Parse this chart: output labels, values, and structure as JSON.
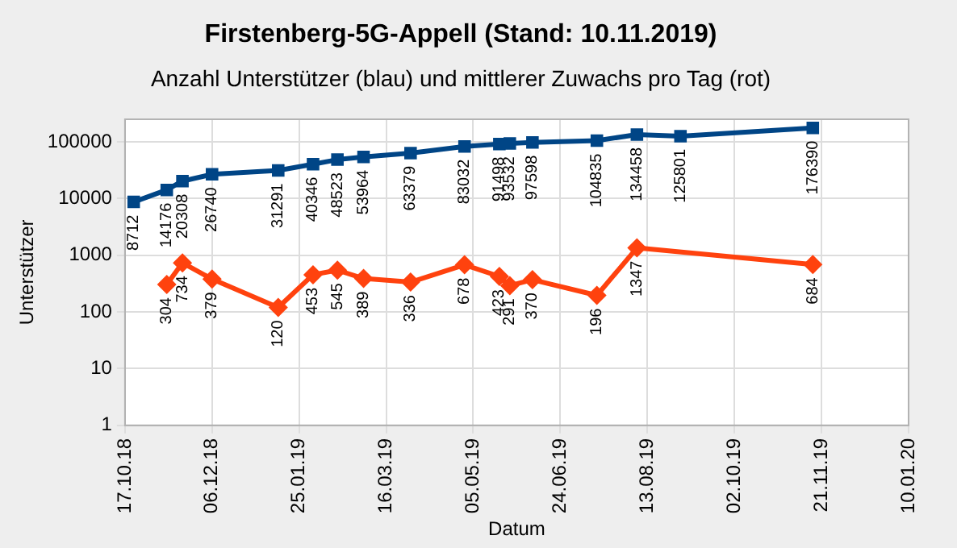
{
  "chart_data": {
    "type": "line",
    "title": "Firstenberg-5G-Appell (Stand: 10.11.2019)",
    "subtitle": "Anzahl Unterstützer (blau) und mittlerer Zuwachs pro Tag (rot)",
    "xlabel": "Datum",
    "ylabel": "Unterstützer",
    "log": "y",
    "grid": true,
    "legend": false,
    "data_labels": true,
    "line_style": "solid",
    "xlim": [
      "2018-10-17",
      "2020-01-10"
    ],
    "xticks": [
      {
        "value": "2018-10-17",
        "label": "17.10.18"
      },
      {
        "value": "2018-12-06",
        "label": "06.12.18"
      },
      {
        "value": "2019-01-25",
        "label": "25.01.19"
      },
      {
        "value": "2019-03-16",
        "label": "16.03.19"
      },
      {
        "value": "2019-05-05",
        "label": "05.05.19"
      },
      {
        "value": "2019-06-24",
        "label": "24.06.19"
      },
      {
        "value": "2019-08-13",
        "label": "13.08.19"
      },
      {
        "value": "2019-10-02",
        "label": "02.10.19"
      },
      {
        "value": "2019-11-21",
        "label": "21.11.19"
      },
      {
        "value": "2020-01-10",
        "label": "10.01.20"
      }
    ],
    "ylim": [
      1,
      250000
    ],
    "yticks": [
      1,
      10,
      100,
      1000,
      10000,
      100000
    ],
    "series": [
      {
        "color": "#004586",
        "marker": "square",
        "x": [
          "2018-10-22",
          "2018-11-10",
          "2018-11-19",
          "2018-12-06",
          "2019-01-13",
          "2019-02-02",
          "2019-02-16",
          "2019-03-03",
          "2019-03-30",
          "2019-04-30",
          "2019-05-20",
          "2019-05-26",
          "2019-06-08",
          "2019-07-15",
          "2019-08-07",
          "2019-09-01",
          "2019-11-16"
        ],
        "values": [
          8712,
          14176,
          20308,
          26740,
          31291,
          40346,
          48523,
          53964,
          63379,
          83032,
          91498,
          93532,
          97598,
          104835,
          134458,
          125801,
          176390
        ]
      },
      {
        "color": "#ff420e",
        "marker": "diamond",
        "x": [
          "2018-11-10",
          "2018-11-19",
          "2018-12-06",
          "2019-01-13",
          "2019-02-02",
          "2019-02-16",
          "2019-03-03",
          "2019-03-30",
          "2019-04-30",
          "2019-05-20",
          "2019-05-26",
          "2019-06-08",
          "2019-07-15",
          "2019-08-07",
          "2019-11-16"
        ],
        "values": [
          304,
          734,
          379,
          120,
          453,
          545,
          389,
          336,
          678,
          423,
          291,
          370,
          196,
          1347,
          684
        ]
      }
    ]
  }
}
